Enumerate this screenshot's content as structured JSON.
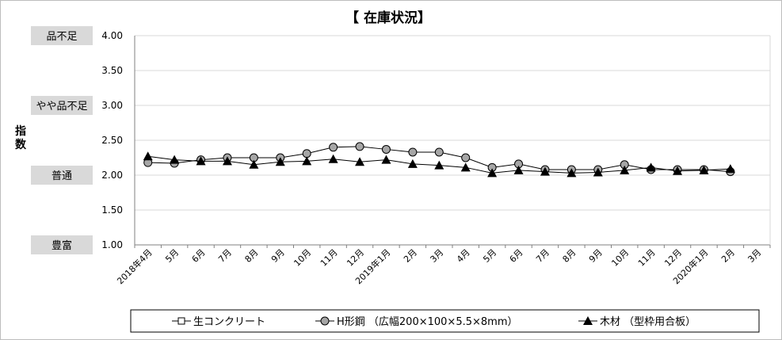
{
  "chart_data": {
    "type": "line",
    "title": "【 在庫状況】",
    "ylabel": "指数",
    "ylim": [
      1.0,
      4.0
    ],
    "yticks": [
      "1.00",
      "1.50",
      "2.00",
      "2.50",
      "3.00",
      "3.50",
      "4.00"
    ],
    "level_labels": [
      {
        "text": "品不足",
        "value": 4.0
      },
      {
        "text": "やや品不足",
        "value": 3.0
      },
      {
        "text": "普通",
        "value": 2.0
      },
      {
        "text": "豊富",
        "value": 1.0
      }
    ],
    "categories": [
      "2018年4月",
      "5月",
      "6月",
      "7月",
      "8月",
      "9月",
      "10月",
      "11月",
      "12月",
      "2019年1月",
      "2月",
      "3月",
      "4月",
      "5月",
      "6月",
      "7月",
      "8月",
      "9月",
      "10月",
      "11月",
      "12月",
      "2020年1月",
      "2月",
      "3月"
    ],
    "grid": true,
    "legend_position": "bottom",
    "series": [
      {
        "name": "生コンクリート",
        "marker": "square",
        "values": [
          null,
          null,
          null,
          null,
          null,
          null,
          null,
          null,
          null,
          null,
          null,
          null,
          null,
          null,
          null,
          null,
          null,
          null,
          null,
          null,
          null,
          null,
          null,
          null
        ]
      },
      {
        "name": "H形鋼 （広幅200×100×5.5×8mm）",
        "marker": "circle",
        "values": [
          2.18,
          2.17,
          2.22,
          2.25,
          2.25,
          2.25,
          2.31,
          2.4,
          2.41,
          2.37,
          2.33,
          2.33,
          2.25,
          2.11,
          2.16,
          2.08,
          2.08,
          2.08,
          2.15,
          2.08,
          2.08,
          2.08,
          2.05,
          null
        ]
      },
      {
        "name": "木材 （型枠用合板）",
        "marker": "triangle",
        "values": [
          2.27,
          2.22,
          2.2,
          2.2,
          2.15,
          2.19,
          2.2,
          2.23,
          2.19,
          2.22,
          2.16,
          2.14,
          2.11,
          2.03,
          2.07,
          2.05,
          2.03,
          2.04,
          2.07,
          2.11,
          2.06,
          2.07,
          2.09,
          null
        ]
      }
    ]
  },
  "colors": {
    "line": "#000000",
    "circle_fill": "#a6a6a6",
    "grid": "#d9d9d9",
    "level_box": "#d9d9d9"
  }
}
